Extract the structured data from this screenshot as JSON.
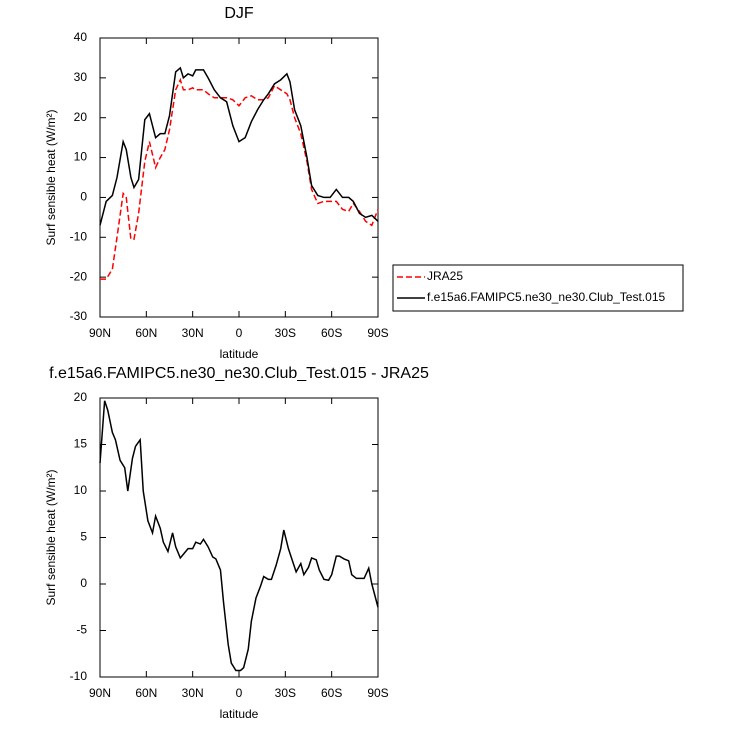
{
  "chart_data": [
    {
      "type": "line",
      "title": "DJF",
      "xlabel": "latitude",
      "ylabel": "Surf sensible heat (W/m²)",
      "x": [
        90,
        86,
        82,
        79,
        75,
        73,
        70,
        68,
        65,
        61,
        58,
        54,
        51,
        48,
        45,
        41,
        38,
        36,
        33,
        30,
        28,
        23,
        20,
        16,
        12,
        8,
        4,
        0,
        -4,
        -8,
        -12,
        -16,
        -19,
        -23,
        -27,
        -31,
        -33,
        -36,
        -40,
        -44,
        -47,
        -51,
        -55,
        -59,
        -63,
        -67,
        -71,
        -74,
        -78,
        -82,
        -86,
        -90
      ],
      "series": [
        {
          "name": "JRA25",
          "color": "#ff0000",
          "style": "dashed",
          "values": [
            -20.5,
            -20.5,
            -18,
            -10,
            1,
            0,
            -10.5,
            -10.5,
            -4,
            9,
            14,
            7.5,
            10,
            12,
            17,
            27,
            29.5,
            27,
            27,
            27.5,
            27,
            27,
            26,
            25,
            25,
            25,
            24.5,
            23,
            25,
            25.5,
            24.5,
            24.5,
            25,
            28,
            27,
            26,
            24.5,
            20,
            16,
            9,
            2,
            -1.5,
            -1,
            -1,
            -1,
            -3,
            -3.5,
            -1.5,
            -3.5,
            -6,
            -7,
            -3
          ]
        },
        {
          "name": "f.e15a6.FAMIPC5.ne30_ne30.Club_Test.015",
          "color": "#000000",
          "style": "solid",
          "values": [
            -7,
            -1,
            0.5,
            5,
            14,
            12,
            5,
            2.5,
            4.5,
            19.5,
            21,
            15,
            16,
            16,
            20.5,
            31.5,
            32.5,
            30,
            31,
            30.5,
            32,
            32,
            30,
            27,
            25,
            24,
            18,
            14,
            15,
            19,
            22,
            24.5,
            26,
            28.5,
            29.5,
            31,
            29,
            22,
            18,
            10,
            3,
            0.5,
            0,
            0,
            2,
            0,
            0,
            -1,
            -4,
            -5,
            -4.5,
            -6
          ]
        }
      ],
      "xlim": [
        90,
        -90
      ],
      "xticks": [
        {
          "value": 90,
          "label": "90N"
        },
        {
          "value": 60,
          "label": "60N"
        },
        {
          "value": 30,
          "label": "30N"
        },
        0,
        {
          "value": -30,
          "label": "30S"
        },
        {
          "value": -60,
          "label": "60S"
        },
        {
          "value": -90,
          "label": "90S"
        }
      ],
      "ylim": [
        -30,
        40
      ],
      "yticks": [
        -30,
        -20,
        -10,
        0,
        10,
        20,
        30,
        40
      ],
      "legend": "right"
    },
    {
      "type": "line",
      "title": "f.e15a6.FAMIPC5.ne30_ne30.Club_Test.015 - JRA25",
      "xlabel": "latitude",
      "ylabel": "Surf sensible heat (W/m²)",
      "x": [
        90,
        87,
        85,
        82,
        80,
        77,
        74,
        72,
        69,
        67,
        64,
        62,
        59,
        56,
        54,
        51,
        49,
        46,
        43,
        41,
        38,
        36,
        33,
        30,
        28,
        25,
        23,
        20,
        17,
        15,
        12,
        10,
        7,
        5,
        2,
        -1,
        -3,
        -6,
        -8,
        -11,
        -14,
        -16,
        -19,
        -21,
        -24,
        -27,
        -29,
        -32,
        -34,
        -37,
        -40,
        -42,
        -45,
        -47,
        -50,
        -52,
        -55,
        -58,
        -60,
        -63,
        -65,
        -68,
        -71,
        -73,
        -76,
        -78,
        -81,
        -84,
        -86,
        -90
      ],
      "values": [
        13,
        19.7,
        18.7,
        16.3,
        15.5,
        13.3,
        12.5,
        10,
        13.5,
        14.8,
        15.5,
        10,
        6.8,
        5.5,
        7.3,
        6,
        4.5,
        3.5,
        5.5,
        4,
        2.8,
        3.2,
        3.8,
        3.8,
        4.5,
        4.3,
        4.8,
        4,
        2.9,
        2.7,
        1.5,
        -2,
        -6.5,
        -8.5,
        -9.3,
        -9.3,
        -9,
        -7,
        -4,
        -1.5,
        -0.2,
        0.8,
        0.5,
        0.5,
        2,
        3.8,
        5.8,
        3.8,
        2.8,
        1.3,
        2.2,
        1,
        1.8,
        2.8,
        2.6,
        1.5,
        0.5,
        0.4,
        1,
        3,
        3,
        2.7,
        2.5,
        1,
        0.6,
        0.6,
        0.6,
        1.7,
        0,
        -2.5
      ],
      "color": "#000000",
      "xlim": [
        90,
        -90
      ],
      "xticks": [
        {
          "value": 90,
          "label": "90N"
        },
        {
          "value": 60,
          "label": "60N"
        },
        {
          "value": 30,
          "label": "30N"
        },
        0,
        {
          "value": -30,
          "label": "30S"
        },
        {
          "value": -60,
          "label": "60S"
        },
        {
          "value": -90,
          "label": "90S"
        }
      ],
      "ylim": [
        -10,
        20
      ],
      "yticks": [
        -10,
        -5,
        0,
        5,
        10,
        15,
        20
      ]
    }
  ]
}
